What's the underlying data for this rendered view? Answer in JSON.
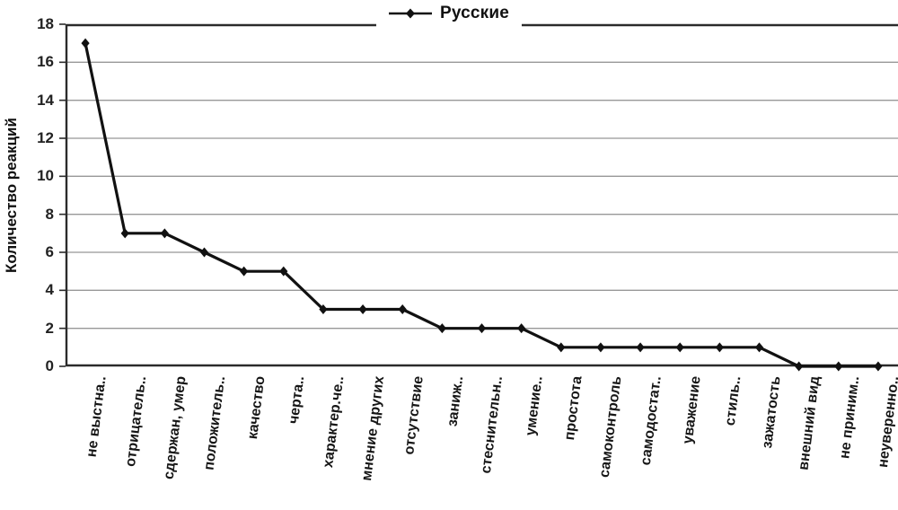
{
  "legend": {
    "label": "Русские"
  },
  "y_axis_title": "Количество реакций",
  "chart_data": {
    "type": "line",
    "title": "",
    "xlabel": "",
    "ylabel": "Количество реакций",
    "ylim": [
      0,
      18
    ],
    "yticks": [
      0,
      2,
      4,
      6,
      8,
      10,
      12,
      14,
      16,
      18
    ],
    "grid": true,
    "legend_position": "top-center",
    "line_color": "#111111",
    "grid_color": "#989898",
    "axis_color": "#2b2b2b",
    "marker": "diamond",
    "categories": [
      "не выстна..",
      "отрицатель..",
      "сдержан, умер",
      "положитель..",
      "качество",
      "черта..",
      "характер.че..",
      "мнение других",
      "отсутствие",
      "заниж..",
      "стеснительн..",
      "умение..",
      "простота",
      "самоконтроль",
      "самодостат..",
      "уважение",
      "стиль..",
      "зажатость",
      "внешний вид",
      "не приним..",
      "неуверенно.."
    ],
    "series": [
      {
        "name": "Русские",
        "values": [
          17,
          7,
          7,
          6,
          5,
          5,
          3,
          3,
          3,
          2,
          2,
          2,
          1,
          1,
          1,
          1,
          1,
          1,
          0,
          0,
          0
        ]
      }
    ]
  }
}
